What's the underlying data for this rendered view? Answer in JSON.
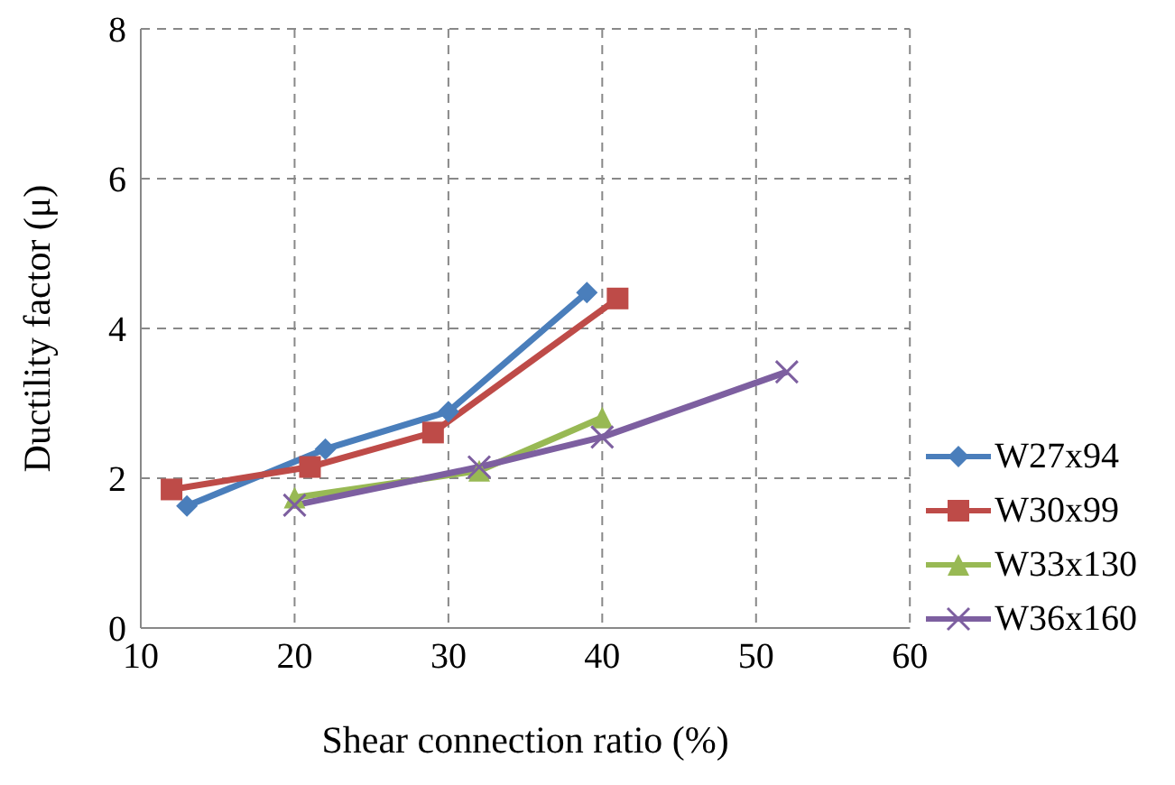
{
  "chart_data": {
    "type": "line",
    "xlabel": "Shear connection ratio (%)",
    "ylabel": "Ductility factor (μ)",
    "xlim": [
      10,
      60
    ],
    "xticks": [
      10,
      20,
      30,
      40,
      50,
      60
    ],
    "ylim": [
      0,
      8
    ],
    "yticks": [
      0,
      2,
      4,
      6,
      8
    ],
    "grid": true,
    "legend": "right",
    "line_style": "solid",
    "series": [
      {
        "name": "W27x94",
        "color": "#4a7ebb",
        "marker": "diamond",
        "x": [
          13,
          22,
          30,
          39
        ],
        "values": [
          1.63,
          2.39,
          2.89,
          4.48
        ]
      },
      {
        "name": "W30x99",
        "color": "#be4b48",
        "marker": "square",
        "x": [
          12,
          21,
          29,
          41
        ],
        "values": [
          1.85,
          2.15,
          2.61,
          4.4
        ]
      },
      {
        "name": "W33x130",
        "color": "#98b954",
        "marker": "triangle",
        "x": [
          20,
          32,
          40
        ],
        "values": [
          1.74,
          2.1,
          2.81
        ]
      },
      {
        "name": "W36x160",
        "color": "#7d5fa0",
        "marker": "cross",
        "x": [
          20,
          32,
          40,
          52
        ],
        "values": [
          1.64,
          2.15,
          2.55,
          3.42
        ]
      }
    ]
  }
}
